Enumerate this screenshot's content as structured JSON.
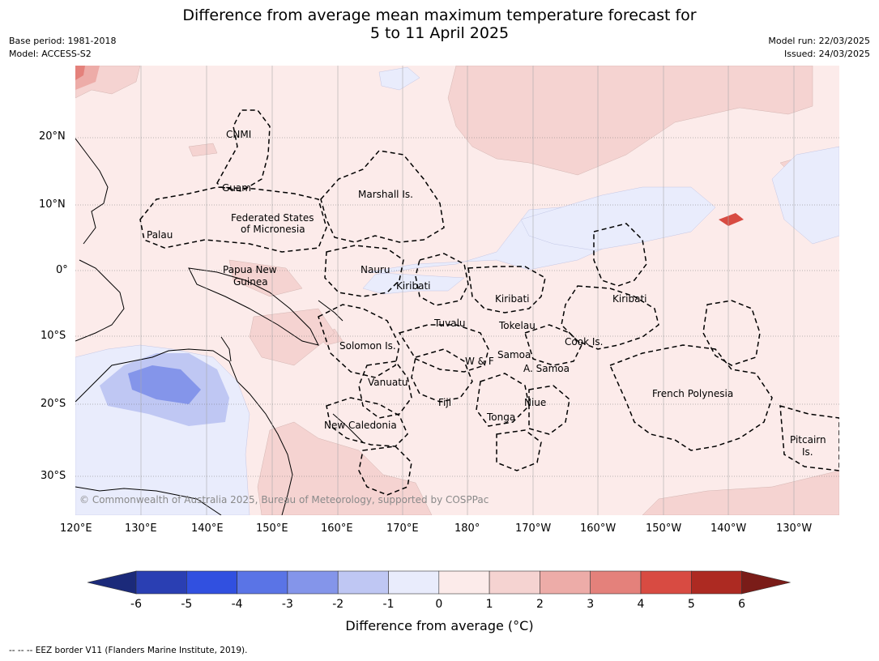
{
  "title": {
    "line1": "Difference from average mean maximum temperature forecast for",
    "line2": "5 to 11 April 2025"
  },
  "meta_left": {
    "base_period": "Base period: 1981-2018",
    "model": "Model: ACCESS-S2"
  },
  "meta_right": {
    "model_run": "Model run: 22/03/2025",
    "issued": "Issued: 24/03/2025"
  },
  "map": {
    "copyright": "© Commonwealth of Australia 2025, Bureau of Meteorology, supported by COSPPac",
    "lon_ticks": [
      "120°E",
      "130°E",
      "140°E",
      "150°E",
      "160°E",
      "170°E",
      "180°",
      "170°W",
      "160°W",
      "150°W",
      "140°W",
      "130°W"
    ],
    "lat_ticks": [
      "20°N",
      "10°N",
      "0°",
      "10°S",
      "20°S",
      "30°S"
    ],
    "regions": {
      "cnmi": "CNMI",
      "guam": "Guam",
      "marshall": "Marshall Is.",
      "fsm1": "Federated States",
      "fsm2": "of Micronesia",
      "palau": "Palau",
      "png1": "Papua New",
      "png2": "Guinea",
      "nauru": "Nauru",
      "kiribati_w": "Kiribati",
      "kiribati_c": "Kiribati",
      "kiribati_e": "Kiribati",
      "tuvalu": "Tuvalu",
      "tokelau": "Tokelau",
      "solomon": "Solomon Is.",
      "wf": "W & F",
      "samoa": "Samoa",
      "asamoa": "A. Samoa",
      "cook": "Cook Is.",
      "vanuatu": "Vanuatu",
      "fiji": "Fiji",
      "niue": "Niue",
      "tonga": "Tonga",
      "newcal": "New Caledonia",
      "frpoly": "French Polynesia",
      "pitcairn1": "Pitcairn",
      "pitcairn2": "Is."
    }
  },
  "colorbar": {
    "ticks": [
      "-6",
      "-5",
      "-4",
      "-3",
      "-2",
      "-1",
      "0",
      "1",
      "2",
      "3",
      "4",
      "5",
      "6"
    ],
    "colors": [
      "#1b2a7a",
      "#2a3fb3",
      "#3150e0",
      "#5a74e6",
      "#8495ea",
      "#bfc7f3",
      "#e9ecfc",
      "#fcebea",
      "#f5d3d1",
      "#edaca8",
      "#e4817b",
      "#d84b42",
      "#ad2a22",
      "#7a1c18"
    ],
    "label": "Difference from average (°C)"
  },
  "footnote": "-- -- -- EEZ border V11 (Flanders Marine Institute, 2019)."
}
